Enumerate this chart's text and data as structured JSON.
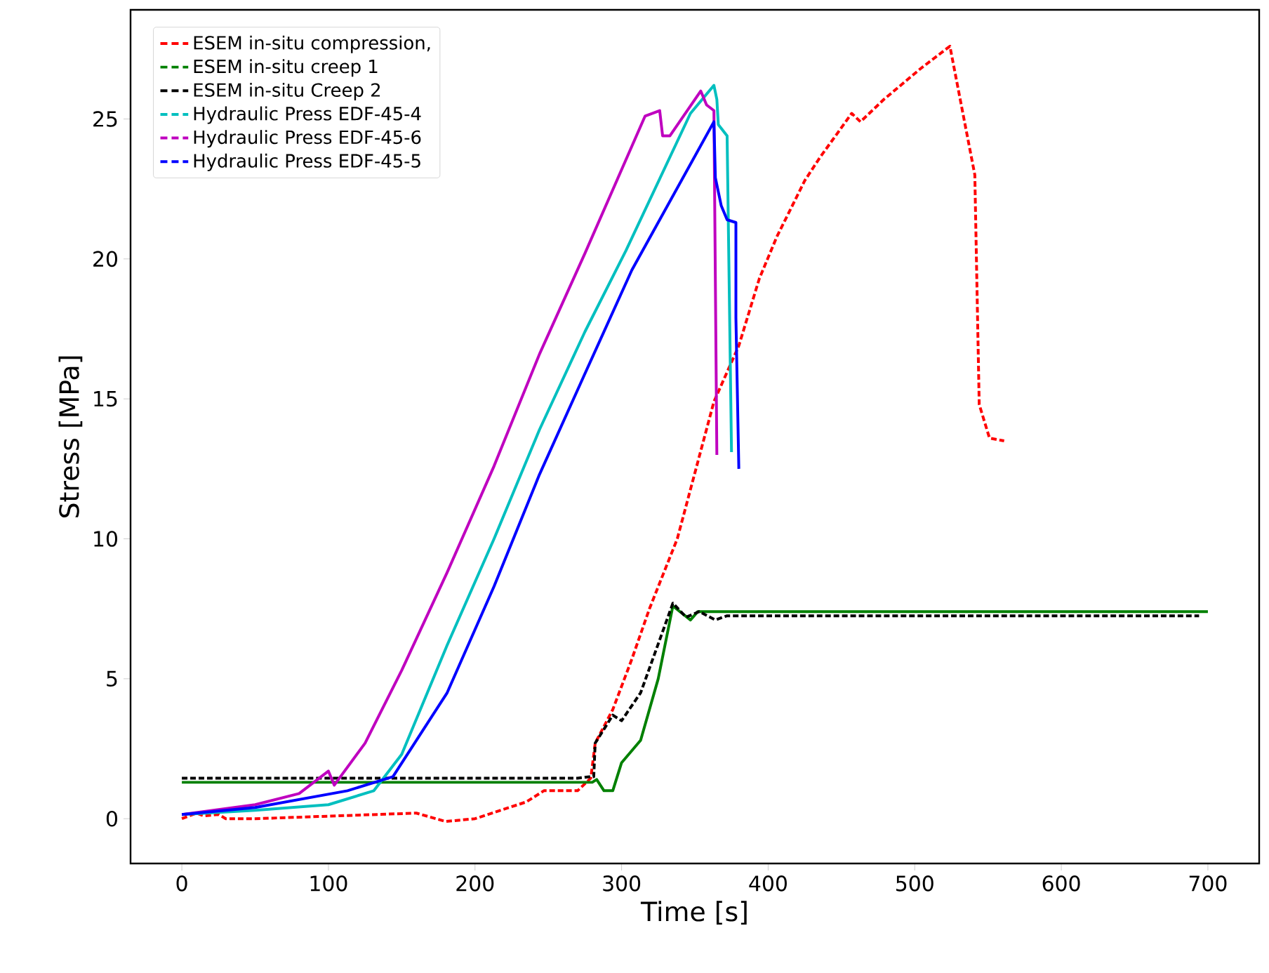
{
  "chart_data": {
    "type": "line",
    "xlabel": "Time [s]",
    "ylabel": "Stress [MPa]",
    "xlim": [
      -35,
      735
    ],
    "ylim": [
      -1.6,
      28.9
    ],
    "xticks": [
      0,
      100,
      200,
      300,
      400,
      500,
      600,
      700
    ],
    "yticks": [
      0,
      5,
      10,
      15,
      20,
      25
    ],
    "legend": "top left",
    "grid": false,
    "marker": "none",
    "series": [
      {
        "name": "ESEM in-situ compression,",
        "color": "#ff0000",
        "line_style": "dashed",
        "x": [
          0,
          10,
          15,
          25,
          30,
          50,
          160,
          180,
          200,
          235,
          247,
          270,
          279,
          282,
          294,
          307,
          319,
          338,
          363,
          380,
          394,
          406,
          425,
          435,
          457,
          463,
          479,
          504,
          524,
          541,
          544,
          551,
          561
        ],
        "values": [
          0,
          0.2,
          0.1,
          0.15,
          0,
          0,
          0.2,
          -0.1,
          0,
          0.6,
          1.0,
          1.0,
          1.45,
          2.7,
          3.9,
          5.7,
          7.5,
          10,
          14.9,
          16.9,
          19.3,
          20.8,
          22.8,
          23.6,
          25.2,
          24.9,
          25.7,
          26.8,
          27.6,
          23.0,
          14.8,
          13.6,
          13.5
        ]
      },
      {
        "name": "ESEM in-situ creep 1",
        "color": "#008000",
        "line_style": "solid",
        "x": [
          0,
          280,
          283,
          288,
          294,
          300,
          313,
          325,
          335,
          347,
          352,
          700
        ],
        "values": [
          1.3,
          1.3,
          1.4,
          1.0,
          1.0,
          2.0,
          2.8,
          5.0,
          7.6,
          7.1,
          7.4,
          7.4
        ]
      },
      {
        "name": "ESEM in-situ Creep 2",
        "color": "#000000",
        "line_style": "dashed",
        "x": [
          0,
          270,
          278,
          281,
          282,
          294,
          300,
          313,
          335,
          344,
          353,
          364,
          372,
          694
        ],
        "values": [
          1.45,
          1.45,
          1.5,
          1.5,
          2.7,
          3.7,
          3.5,
          4.5,
          7.7,
          7.2,
          7.4,
          7.1,
          7.25,
          7.25
        ]
      },
      {
        "name": "Hydraulic Press EDF-45-4",
        "color": "#00bfbf",
        "line_style": "solid",
        "x": [
          0,
          50,
          100,
          131,
          150,
          181,
          213,
          244,
          275,
          303,
          347,
          363,
          365,
          366,
          372,
          375
        ],
        "values": [
          0.15,
          0.3,
          0.5,
          1.0,
          2.3,
          6.2,
          10,
          13.9,
          17.4,
          20.3,
          25.2,
          26.2,
          25.7,
          24.8,
          24.4,
          13.1
        ]
      },
      {
        "name": "Hydraulic Press EDF-45-6",
        "color": "#bf00bf",
        "line_style": "solid",
        "x": [
          0,
          50,
          80,
          100,
          104,
          125,
          150,
          181,
          213,
          244,
          275,
          316,
          326,
          328,
          333,
          354,
          358,
          363,
          365
        ],
        "values": [
          0.15,
          0.5,
          0.9,
          1.7,
          1.2,
          2.7,
          5.3,
          8.8,
          12.6,
          16.6,
          20.2,
          25.1,
          25.3,
          24.4,
          24.4,
          26.0,
          25.5,
          25.3,
          13.0
        ]
      },
      {
        "name": "Hydraulic Press EDF-45-5",
        "color": "#0000ff",
        "line_style": "solid",
        "x": [
          0,
          50,
          113,
          144,
          181,
          213,
          244,
          275,
          307,
          363,
          364,
          368,
          372,
          378,
          378,
          380
        ],
        "values": [
          0.15,
          0.4,
          1.0,
          1.5,
          4.5,
          8.3,
          12.3,
          15.9,
          19.6,
          24.9,
          22.9,
          21.9,
          21.4,
          21.3,
          17.9,
          12.5
        ]
      }
    ]
  }
}
